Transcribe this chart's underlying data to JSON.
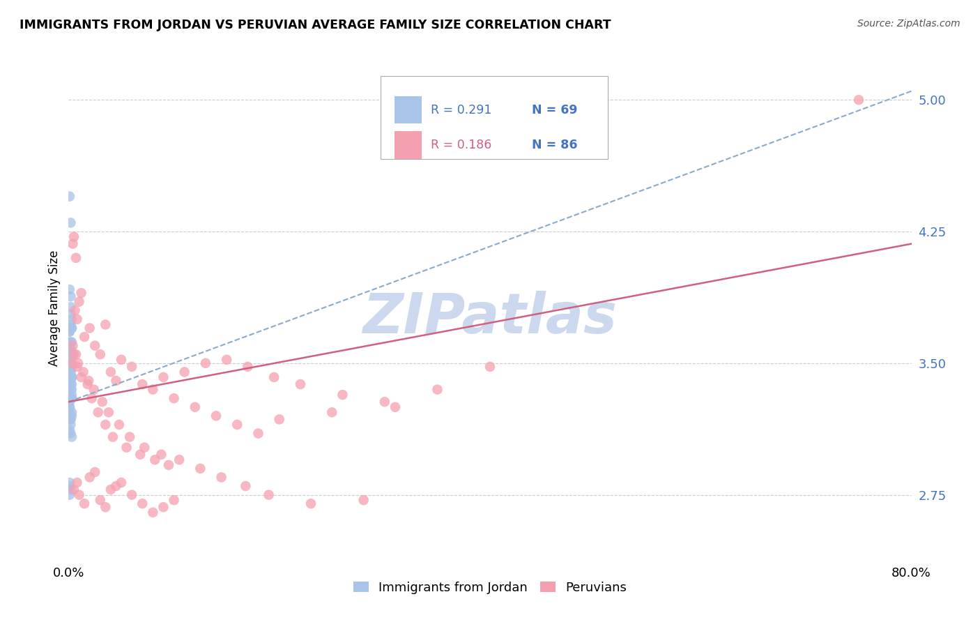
{
  "title": "IMMIGRANTS FROM JORDAN VS PERUVIAN AVERAGE FAMILY SIZE CORRELATION CHART",
  "source": "Source: ZipAtlas.com",
  "ylabel": "Average Family Size",
  "yticks": [
    2.75,
    3.5,
    4.25,
    5.0
  ],
  "ytick_labels": [
    "2.75",
    "3.50",
    "4.25",
    "5.00"
  ],
  "legend_jordan_r": "R = 0.291",
  "legend_jordan_n": "N = 69",
  "legend_peru_r": "R = 0.186",
  "legend_peru_n": "N = 86",
  "legend_label_jordan": "Immigrants from Jordan",
  "legend_label_peru": "Peruvians",
  "color_jordan": "#a8c4e8",
  "color_peru": "#f5a0b0",
  "color_jordan_line": "#8aaacc",
  "color_peru_line": "#d06080",
  "color_jordan_text": "#4472c4",
  "color_n_text": "#ff2200",
  "watermark": "ZIPatlas",
  "watermark_color": "#ccd8ee",
  "xmin": 0.0,
  "xmax": 0.8,
  "ymin": 2.38,
  "ymax": 5.25,
  "jordan_x": [
    0.001,
    0.002,
    0.001,
    0.003,
    0.002,
    0.001,
    0.003,
    0.002,
    0.001,
    0.002,
    0.001,
    0.003,
    0.002,
    0.001,
    0.002,
    0.003,
    0.001,
    0.002,
    0.003,
    0.001,
    0.002,
    0.001,
    0.003,
    0.002,
    0.001,
    0.002,
    0.003,
    0.001,
    0.002,
    0.001,
    0.003,
    0.002,
    0.001,
    0.002,
    0.003,
    0.001,
    0.002,
    0.001,
    0.003,
    0.002,
    0.001,
    0.002,
    0.003,
    0.001,
    0.002,
    0.003,
    0.001,
    0.002,
    0.001,
    0.003,
    0.002,
    0.001,
    0.002,
    0.003,
    0.001,
    0.002,
    0.001,
    0.003,
    0.002,
    0.001,
    0.003,
    0.002,
    0.001,
    0.002,
    0.003,
    0.001,
    0.002,
    0.001,
    0.003
  ],
  "jordan_y": [
    3.5,
    3.45,
    3.38,
    3.55,
    3.42,
    3.6,
    3.7,
    3.52,
    3.4,
    3.58,
    3.62,
    3.3,
    3.45,
    3.68,
    3.78,
    3.42,
    3.36,
    3.55,
    3.48,
    3.32,
    3.72,
    3.5,
    3.42,
    3.62,
    4.45,
    4.3,
    3.2,
    3.28,
    3.15,
    3.32,
    3.22,
    3.1,
    3.12,
    3.18,
    3.08,
    3.25,
    3.88,
    3.92,
    3.75,
    3.82,
    3.68,
    3.38,
    3.55,
    3.48,
    3.42,
    3.3,
    2.82,
    2.78,
    2.8,
    3.62,
    3.52,
    3.45,
    3.4,
    3.35,
    3.55,
    3.5,
    3.6,
    3.42,
    3.35,
    3.48,
    3.7,
    3.58,
    3.22,
    3.18,
    3.38,
    3.25,
    3.42,
    2.75,
    3.32
  ],
  "peru_x": [
    0.003,
    0.005,
    0.004,
    0.006,
    0.008,
    0.007,
    0.01,
    0.012,
    0.015,
    0.02,
    0.025,
    0.03,
    0.035,
    0.04,
    0.045,
    0.05,
    0.06,
    0.07,
    0.08,
    0.09,
    0.1,
    0.12,
    0.14,
    0.16,
    0.18,
    0.2,
    0.25,
    0.3,
    0.35,
    0.4,
    0.005,
    0.008,
    0.01,
    0.015,
    0.02,
    0.025,
    0.03,
    0.035,
    0.04,
    0.045,
    0.05,
    0.06,
    0.07,
    0.08,
    0.09,
    0.1,
    0.005,
    0.008,
    0.012,
    0.018,
    0.022,
    0.028,
    0.035,
    0.042,
    0.055,
    0.068,
    0.082,
    0.095,
    0.11,
    0.13,
    0.15,
    0.17,
    0.195,
    0.22,
    0.26,
    0.31,
    0.75,
    0.004,
    0.007,
    0.009,
    0.014,
    0.019,
    0.024,
    0.032,
    0.038,
    0.048,
    0.058,
    0.072,
    0.088,
    0.105,
    0.125,
    0.145,
    0.168,
    0.19,
    0.23,
    0.28
  ],
  "peru_y": [
    3.5,
    4.22,
    4.18,
    3.8,
    3.75,
    4.1,
    3.85,
    3.9,
    3.65,
    3.7,
    3.6,
    3.55,
    3.72,
    3.45,
    3.4,
    3.52,
    3.48,
    3.38,
    3.35,
    3.42,
    3.3,
    3.25,
    3.2,
    3.15,
    3.1,
    3.18,
    3.22,
    3.28,
    3.35,
    3.48,
    2.78,
    2.82,
    2.75,
    2.7,
    2.85,
    2.88,
    2.72,
    2.68,
    2.78,
    2.8,
    2.82,
    2.75,
    2.7,
    2.65,
    2.68,
    2.72,
    3.55,
    3.48,
    3.42,
    3.38,
    3.3,
    3.22,
    3.15,
    3.08,
    3.02,
    2.98,
    2.95,
    2.92,
    3.45,
    3.5,
    3.52,
    3.48,
    3.42,
    3.38,
    3.32,
    3.25,
    5.0,
    3.6,
    3.55,
    3.5,
    3.45,
    3.4,
    3.35,
    3.28,
    3.22,
    3.15,
    3.08,
    3.02,
    2.98,
    2.95,
    2.9,
    2.85,
    2.8,
    2.75,
    2.7,
    2.72
  ],
  "jordan_line_x0": 0.0,
  "jordan_line_x1": 0.8,
  "jordan_line_y0": 3.28,
  "jordan_line_y1": 5.05,
  "peru_line_x0": 0.0,
  "peru_line_x1": 0.8,
  "peru_line_y0": 3.28,
  "peru_line_y1": 4.18
}
